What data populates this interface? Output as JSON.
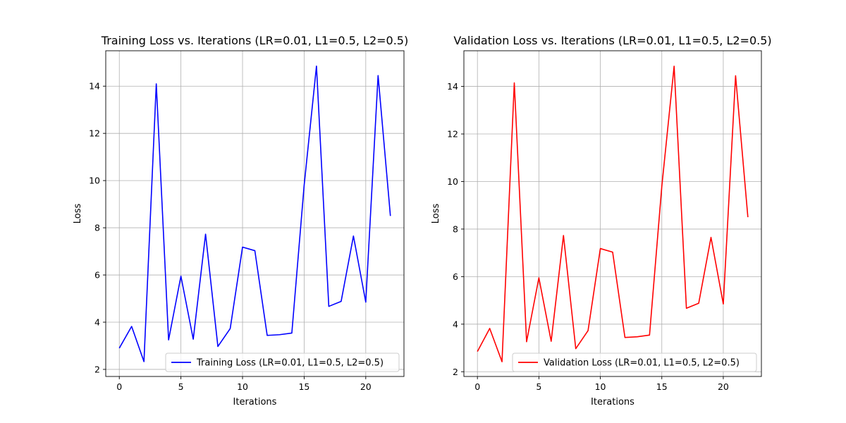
{
  "chart_data": [
    {
      "type": "line",
      "title": "Training Loss vs. Iterations (LR=0.01, L1=0.5, L2=0.5)",
      "xlabel": "Iterations",
      "ylabel": "Loss",
      "xlim": [
        -1.1,
        23.1
      ],
      "ylim": [
        1.7,
        15.5
      ],
      "xticks": [
        0,
        5,
        10,
        15,
        20
      ],
      "yticks": [
        2,
        4,
        6,
        8,
        10,
        12,
        14
      ],
      "xtick_labels": [
        "0",
        "5",
        "10",
        "15",
        "20"
      ],
      "ytick_labels": [
        "2",
        "4",
        "6",
        "8",
        "10",
        "12",
        "14"
      ],
      "grid": true,
      "legend_position": "bottom-right",
      "x": [
        0,
        1,
        2,
        3,
        4,
        5,
        6,
        7,
        8,
        9,
        10,
        11,
        12,
        13,
        14,
        15,
        16,
        17,
        18,
        19,
        20,
        21,
        22
      ],
      "series": [
        {
          "name": "Training Loss (LR=0.01, L1=0.5, L2=0.5)",
          "color": "#0000ff",
          "values": [
            2.9,
            3.82,
            2.33,
            14.1,
            3.25,
            5.95,
            3.28,
            7.73,
            2.97,
            3.73,
            7.18,
            7.03,
            3.44,
            3.47,
            3.54,
            9.8,
            14.85,
            4.67,
            4.88,
            7.65,
            4.85,
            14.45,
            8.5
          ]
        }
      ]
    },
    {
      "type": "line",
      "title": "Validation Loss vs. Iterations (LR=0.01, L1=0.5, L2=0.5)",
      "xlabel": "Iterations",
      "ylabel": "Loss",
      "xlim": [
        -1.1,
        23.1
      ],
      "ylim": [
        1.8,
        15.5
      ],
      "xticks": [
        0,
        5,
        10,
        15,
        20
      ],
      "yticks": [
        2,
        4,
        6,
        8,
        10,
        12,
        14
      ],
      "xtick_labels": [
        "0",
        "5",
        "10",
        "15",
        "20"
      ],
      "ytick_labels": [
        "2",
        "4",
        "6",
        "8",
        "10",
        "12",
        "14"
      ],
      "grid": true,
      "legend_position": "bottom-right",
      "x": [
        0,
        1,
        2,
        3,
        4,
        5,
        6,
        7,
        8,
        9,
        10,
        11,
        12,
        13,
        14,
        15,
        16,
        17,
        18,
        19,
        20,
        21,
        22
      ],
      "series": [
        {
          "name": "Validation Loss (LR=0.01, L1=0.5, L2=0.5)",
          "color": "#ff0000",
          "values": [
            2.85,
            3.82,
            2.42,
            14.15,
            3.26,
            5.95,
            3.28,
            7.73,
            2.97,
            3.73,
            7.18,
            7.03,
            3.44,
            3.47,
            3.54,
            9.8,
            14.85,
            4.67,
            4.88,
            7.65,
            4.85,
            14.45,
            8.5
          ]
        }
      ]
    }
  ]
}
